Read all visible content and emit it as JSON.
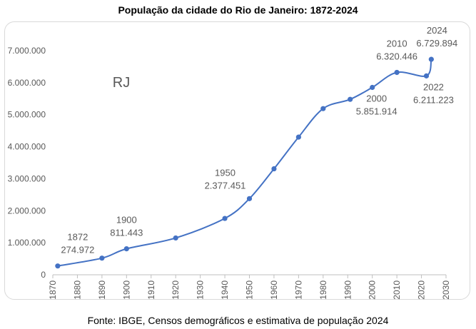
{
  "chart_data": {
    "type": "line",
    "title": "População da cidade do Rio de Janeiro: 1872-2024",
    "annotation": "RJ",
    "source": "Fonte: IBGE, Censos demográficos e estimativa de população 2024",
    "xlim": [
      1870,
      2030
    ],
    "ylim": [
      0,
      7000000
    ],
    "x_ticks": [
      "1870",
      "1880",
      "1890",
      "1900",
      "1910",
      "1920",
      "1930",
      "1940",
      "1950",
      "1960",
      "1970",
      "1980",
      "1990",
      "2000",
      "2010",
      "2020",
      "2030"
    ],
    "y_ticks": [
      "0",
      "1.000.000",
      "2.000.000",
      "3.000.000",
      "4.000.000",
      "5.000.000",
      "6.000.000",
      "7.000.000"
    ],
    "grid": false,
    "color": "#4472C4",
    "x": [
      1872,
      1890,
      1900,
      1920,
      1940,
      1950,
      1960,
      1970,
      1980,
      1991,
      2000,
      2010,
      2022,
      2024
    ],
    "y": [
      274972,
      520000,
      811443,
      1150000,
      1760000,
      2377451,
      3310000,
      4300000,
      5190000,
      5480000,
      5851914,
      6320446,
      6211223,
      6729894
    ],
    "data_labels": [
      {
        "x": 1872,
        "year": "1872",
        "value": "274.972",
        "pos": "above"
      },
      {
        "x": 1900,
        "year": "1900",
        "value": "811.443",
        "pos": "above"
      },
      {
        "x": 1950,
        "year": "1950",
        "value": "2.377.451",
        "pos": "above-left"
      },
      {
        "x": 2000,
        "year": "2000",
        "value": "5.851.914",
        "pos": "below"
      },
      {
        "x": 2010,
        "year": "2010",
        "value": "6.320.446",
        "pos": "above"
      },
      {
        "x": 2022,
        "year": "2022",
        "value": "6.211.223",
        "pos": "below"
      },
      {
        "x": 2024,
        "year": "2024",
        "value": "6.729.894",
        "pos": "above"
      }
    ]
  }
}
